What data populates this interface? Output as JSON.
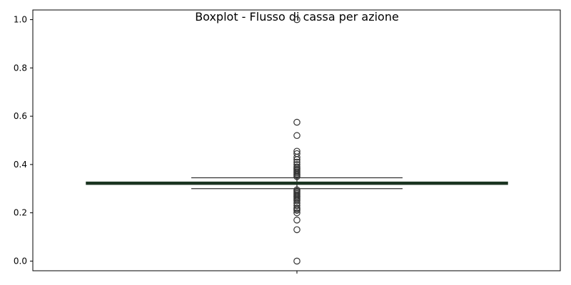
{
  "chart_data": {
    "type": "boxplot",
    "title": "Boxplot - Flusso di cassa per azione",
    "xlabel": "",
    "ylabel": "",
    "ylim": [
      -0.04,
      1.04
    ],
    "yticks": [
      "0.0",
      "0.2",
      "0.4",
      "0.6",
      "0.8",
      "1.0"
    ],
    "grid": false,
    "box": {
      "q1": 0.318,
      "median": 0.322,
      "q3": 0.327,
      "whisker_low": 0.3,
      "whisker_high": 0.345
    },
    "outliers": [
      0.0,
      0.13,
      0.17,
      0.2,
      0.21,
      0.215,
      0.22,
      0.23,
      0.24,
      0.25,
      0.255,
      0.26,
      0.265,
      0.27,
      0.275,
      0.28,
      0.285,
      0.29,
      0.295,
      0.35,
      0.355,
      0.36,
      0.365,
      0.37,
      0.375,
      0.38,
      0.385,
      0.39,
      0.4,
      0.41,
      0.42,
      0.43,
      0.445,
      0.455,
      0.52,
      0.575,
      1.0
    ],
    "colors": {
      "box_fill": "#2d5a3a",
      "median": "#1a3320",
      "whisker": "#333333",
      "outlier_edge": "#333333",
      "axes": "#000000"
    }
  }
}
